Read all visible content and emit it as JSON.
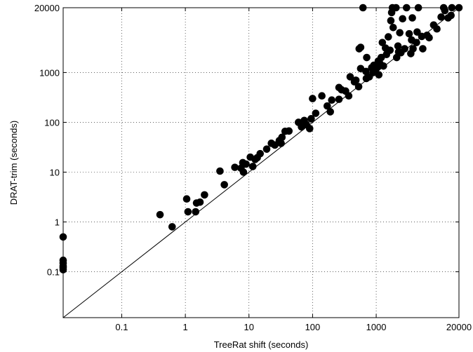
{
  "chart_data": {
    "type": "scatter",
    "title": "",
    "xlabel": "TreeRat shift (seconds)",
    "ylabel": "DRAT-trim (seconds)",
    "xscale": "log",
    "yscale": "log",
    "xlim": [
      0.012,
      20000
    ],
    "ylim": [
      0.012,
      20000
    ],
    "grid": true,
    "grid_style": "dotted",
    "legend": "none",
    "reference_line": "y = x",
    "x_ticks": [
      0.1,
      1,
      10,
      100,
      1000,
      20000
    ],
    "x_tick_labels": [
      "0.1",
      "1",
      "10",
      "100",
      "1000",
      "20000"
    ],
    "y_ticks": [
      0.1,
      1,
      10,
      100,
      1000,
      20000
    ],
    "y_tick_labels": [
      "0.1",
      "1",
      "10",
      "100",
      "1000",
      "20000"
    ],
    "marker_color": "#000000",
    "points": [
      [
        0.012,
        0.5
      ],
      [
        0.012,
        0.17
      ],
      [
        0.012,
        0.15
      ],
      [
        0.012,
        0.13
      ],
      [
        0.012,
        0.12
      ],
      [
        0.012,
        0.11
      ],
      [
        0.4,
        1.4
      ],
      [
        0.62,
        0.8
      ],
      [
        1.05,
        2.9
      ],
      [
        1.1,
        1.6
      ],
      [
        1.45,
        1.6
      ],
      [
        1.5,
        2.4
      ],
      [
        1.7,
        2.5
      ],
      [
        2.0,
        3.5
      ],
      [
        3.5,
        10.5
      ],
      [
        4.1,
        5.6
      ],
      [
        6.0,
        12.5
      ],
      [
        7.5,
        12.0
      ],
      [
        8.0,
        15.5
      ],
      [
        8.2,
        10.0
      ],
      [
        9.0,
        14.5
      ],
      [
        10.5,
        20.0
      ],
      [
        11.5,
        13.0
      ],
      [
        12.5,
        18.0
      ],
      [
        13.5,
        19.5
      ],
      [
        15.0,
        23.5
      ],
      [
        19.0,
        29.0
      ],
      [
        22.5,
        38.0
      ],
      [
        25.5,
        35.0
      ],
      [
        30.0,
        43.0
      ],
      [
        33.0,
        50.0
      ],
      [
        32.0,
        38.0
      ],
      [
        37.0,
        66.0
      ],
      [
        42.5,
        67.0
      ],
      [
        60.0,
        100.0
      ],
      [
        67.0,
        81.0
      ],
      [
        74.0,
        109.0
      ],
      [
        80.0,
        90.0
      ],
      [
        90.0,
        75.0
      ],
      [
        95.0,
        118.0
      ],
      [
        100.0,
        300.0
      ],
      [
        112.0,
        152.0
      ],
      [
        140.0,
        340.0
      ],
      [
        170.0,
        213.0
      ],
      [
        190.0,
        163.0
      ],
      [
        200.0,
        280.0
      ],
      [
        260.0,
        500.0
      ],
      [
        260.0,
        290.0
      ],
      [
        285.0,
        450.0
      ],
      [
        330.0,
        425.0
      ],
      [
        370.0,
        340.0
      ],
      [
        390.0,
        820.0
      ],
      [
        455.0,
        650.0
      ],
      [
        480.0,
        700.0
      ],
      [
        530.0,
        520.0
      ],
      [
        570.0,
        1200.0
      ],
      [
        570.0,
        3200.0
      ],
      [
        540.0,
        3000.0
      ],
      [
        620.0,
        20000.0
      ],
      [
        690.0,
        1050.0
      ],
      [
        700.0,
        760.0
      ],
      [
        710.0,
        2000.0
      ],
      [
        780.0,
        820.0
      ],
      [
        850.0,
        1250.0
      ],
      [
        900.0,
        1000.0
      ],
      [
        920.0,
        1400.0
      ],
      [
        960.0,
        1150.0
      ],
      [
        1000.0,
        1200.0
      ],
      [
        1050.0,
        1300.0
      ],
      [
        1080.0,
        1700.0
      ],
      [
        1100.0,
        900.0
      ],
      [
        1150.0,
        1500.0
      ],
      [
        1200.0,
        2000.0
      ],
      [
        1250.0,
        4000.0
      ],
      [
        1300.0,
        1350.0
      ],
      [
        1400.0,
        3100.0
      ],
      [
        1450.0,
        2300.0
      ],
      [
        1550.0,
        5200.0
      ],
      [
        1650.0,
        2800.0
      ],
      [
        1700.0,
        11000.0
      ],
      [
        1750.0,
        16000.0
      ],
      [
        1800.0,
        20000.0
      ],
      [
        1850.0,
        8000.0
      ],
      [
        2050.0,
        20000.0
      ],
      [
        2100.0,
        2000.0
      ],
      [
        2200.0,
        3400.0
      ],
      [
        2250.0,
        2600.0
      ],
      [
        2350.0,
        6300.0
      ],
      [
        2450.0,
        2500.0
      ],
      [
        2600.0,
        12000.0
      ],
      [
        2800.0,
        3000.0
      ],
      [
        3000.0,
        20000.0
      ],
      [
        3300.0,
        6000.0
      ],
      [
        3500.0,
        2400.0
      ],
      [
        3600.0,
        4500.0
      ],
      [
        3700.0,
        12500.0
      ],
      [
        3800.0,
        3000.0
      ],
      [
        4300.0,
        4000.0
      ],
      [
        4400.0,
        6500.0
      ],
      [
        4600.0,
        20000.0
      ],
      [
        5200.0,
        5300.0
      ],
      [
        5400.0,
        3000.0
      ],
      [
        6300.0,
        5600.0
      ],
      [
        6800.0,
        5000.0
      ],
      [
        8000.0,
        9000.0
      ],
      [
        9000.0,
        7500.0
      ],
      [
        10500.0,
        13000.0
      ],
      [
        11500.0,
        20000.0
      ],
      [
        12000.0,
        17500.0
      ],
      [
        13500.0,
        12500.0
      ],
      [
        15500.0,
        20000.0
      ],
      [
        15000.0,
        14000.0
      ],
      [
        20000.0,
        20000.0
      ]
    ]
  }
}
